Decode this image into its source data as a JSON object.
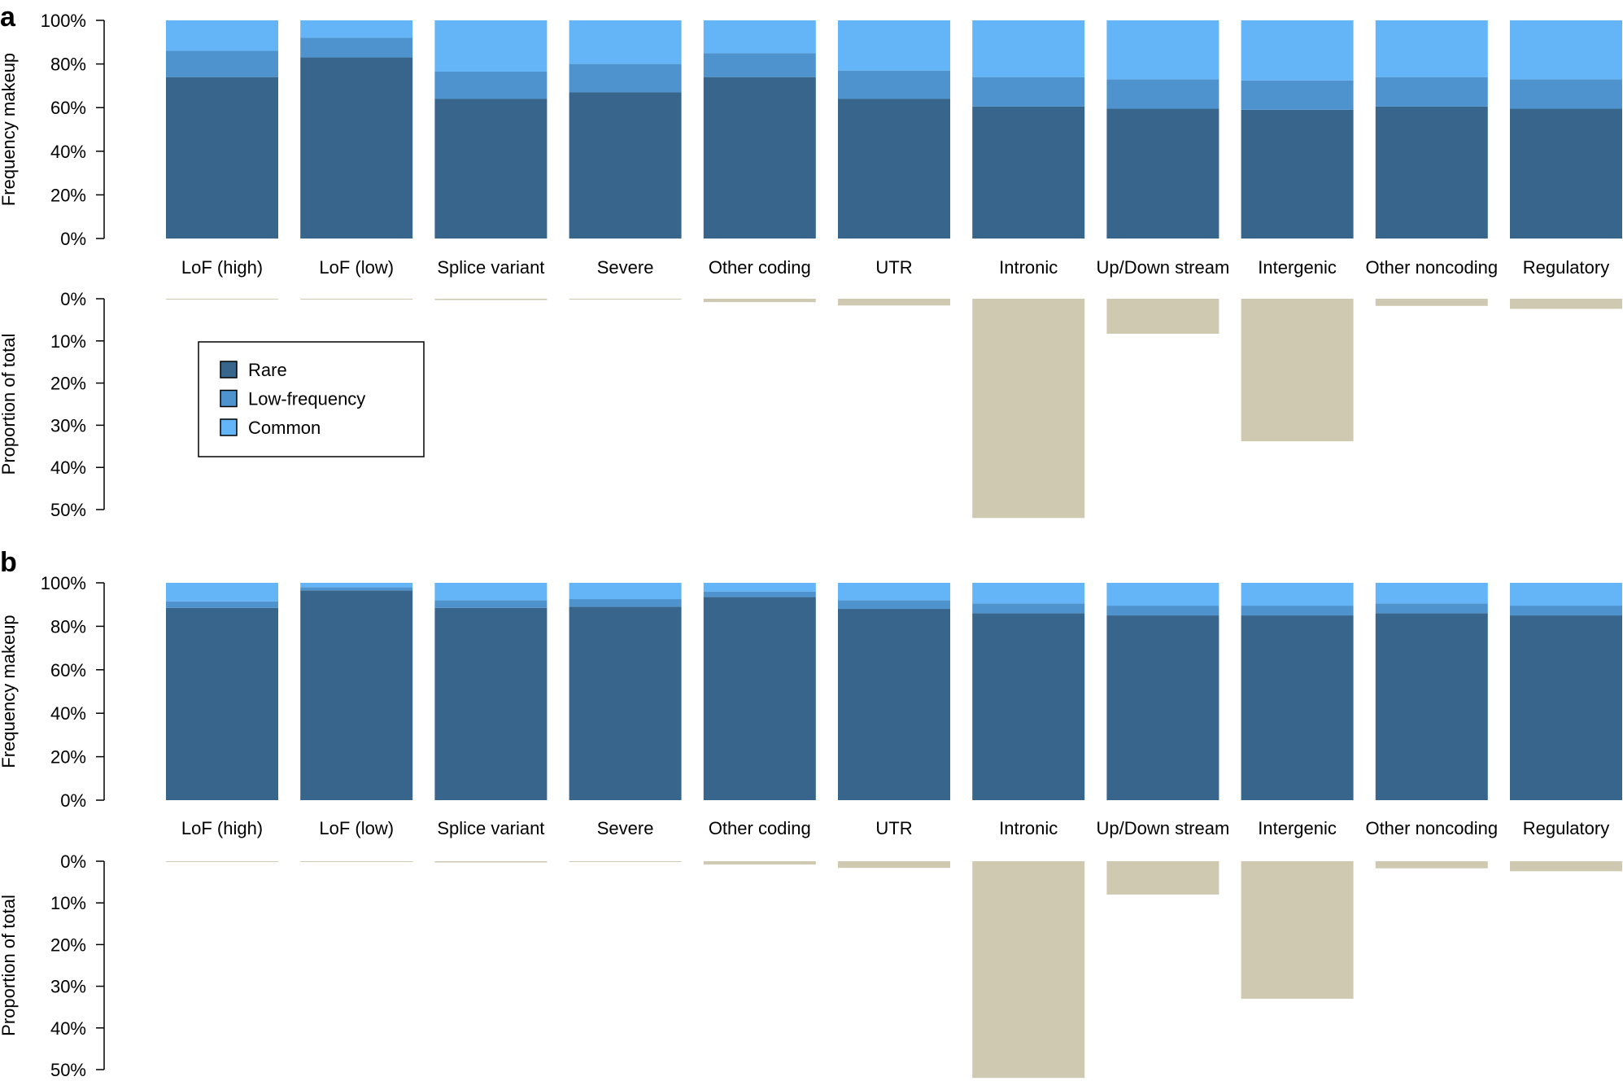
{
  "colors": {
    "rare": "#37658b",
    "low_frequency": "#4e93cd",
    "common": "#63b5f8",
    "proportion": "#cfc9b1"
  },
  "legend": {
    "items": [
      {
        "label": "Rare",
        "color_key": "rare"
      },
      {
        "label": "Low-frequency",
        "color_key": "low_frequency"
      },
      {
        "label": "Common",
        "color_key": "common"
      }
    ]
  },
  "chart_data": [
    {
      "panel": "a",
      "type": "bar",
      "stacked": true,
      "categories": [
        "LoF (high)",
        "LoF (low)",
        "Splice variant",
        "Severe",
        "Other coding",
        "UTR",
        "Intronic",
        "Up/Down stream",
        "Intergenic",
        "Other noncoding",
        "Regulatory"
      ],
      "ylabel": "Frequency makeup",
      "ylim": [
        0,
        100
      ],
      "yticks": [
        "0%",
        "20%",
        "40%",
        "60%",
        "80%",
        "100%"
      ],
      "series": [
        {
          "name": "Rare",
          "values": [
            74,
            83,
            64,
            67,
            74,
            64,
            60.5,
            59.5,
            59,
            60.5,
            59.5
          ]
        },
        {
          "name": "Low-frequency",
          "values": [
            12,
            9,
            12.5,
            13,
            11,
            13,
            13.5,
            13.5,
            13.5,
            13.5,
            13.5
          ]
        },
        {
          "name": "Common",
          "values": [
            14,
            8,
            23.5,
            20,
            15,
            23,
            26,
            27,
            27.5,
            26,
            27
          ]
        }
      ]
    },
    {
      "panel": "a",
      "type": "bar",
      "orientation": "downward",
      "categories": [
        "LoF (high)",
        "LoF (low)",
        "Splice variant",
        "Severe",
        "Other coding",
        "UTR",
        "Intronic",
        "Up/Down stream",
        "Intergenic",
        "Other noncoding",
        "Regulatory"
      ],
      "ylabel": "Proportion of total",
      "ylim": [
        0,
        50
      ],
      "yticks": [
        "0%",
        "10%",
        "20%",
        "30%",
        "40%",
        "50%"
      ],
      "values": [
        0.05,
        0.05,
        0.3,
        0.05,
        0.8,
        1.6,
        52,
        8.3,
        33.8,
        1.7,
        2.4
      ]
    },
    {
      "panel": "b",
      "type": "bar",
      "stacked": true,
      "categories": [
        "LoF (high)",
        "LoF (low)",
        "Splice variant",
        "Severe",
        "Other coding",
        "UTR",
        "Intronic",
        "Up/Down stream",
        "Intergenic",
        "Other noncoding",
        "Regulatory"
      ],
      "ylabel": "Frequency makeup",
      "ylim": [
        0,
        100
      ],
      "yticks": [
        "0%",
        "20%",
        "40%",
        "60%",
        "80%",
        "100%"
      ],
      "series": [
        {
          "name": "Rare",
          "values": [
            88.5,
            96.5,
            88.5,
            89,
            93.5,
            88,
            86,
            85,
            85,
            86,
            85
          ]
        },
        {
          "name": "Low-frequency",
          "values": [
            3,
            1.5,
            3.5,
            3.5,
            2.5,
            4,
            4.5,
            4.5,
            4.5,
            4.5,
            4.5
          ]
        },
        {
          "name": "Common",
          "values": [
            8.5,
            2,
            8,
            7.5,
            4,
            8,
            9.5,
            10.5,
            10.5,
            9.5,
            10.5
          ]
        }
      ]
    },
    {
      "panel": "b",
      "type": "bar",
      "orientation": "downward",
      "categories": [
        "LoF (high)",
        "LoF (low)",
        "Splice variant",
        "Severe",
        "Other coding",
        "UTR",
        "Intronic",
        "Up/Down stream",
        "Intergenic",
        "Other noncoding",
        "Regulatory"
      ],
      "ylabel": "Proportion of total",
      "ylim": [
        0,
        50
      ],
      "yticks": [
        "0%",
        "10%",
        "20%",
        "30%",
        "40%",
        "50%"
      ],
      "values": [
        0.05,
        0.05,
        0.3,
        0.05,
        0.8,
        1.6,
        52,
        8,
        33,
        1.7,
        2.4
      ]
    }
  ]
}
